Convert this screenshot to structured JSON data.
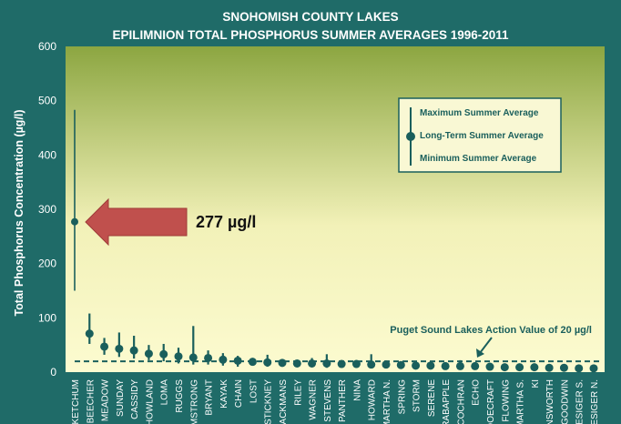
{
  "chart_data": {
    "type": "errorbar",
    "title_line1": "SNOHOMISH COUNTY LAKES",
    "title_line2": "EPILIMNION TOTAL PHOSPHORUS SUMMER AVERAGES 1996-2011",
    "ylabel": "Total  Phosphorus Concentration (µg/l)",
    "xlabel": "",
    "ylim": [
      0,
      600
    ],
    "yticks": [
      0,
      100,
      200,
      300,
      400,
      500,
      600
    ],
    "categories": [
      "KETCHUM",
      "BEECHER",
      "MEADOW",
      "SUNDAY",
      "CASSIDY",
      "HOWLAND",
      "LOMA",
      "RUGGS",
      "ARMSTRONG",
      "BRYANT",
      "KAYAK",
      "CHAIN",
      "LOST",
      "STICKNEY",
      "BLACKMANS",
      "RILEY",
      "WAGNER",
      "STEVENS",
      "PANTHER",
      "NINA",
      "HOWARD",
      "MARTHA N.",
      "SPRING",
      "STORM",
      "SERENE",
      "CRABAPPLE",
      "COCHRAN",
      "ECHO",
      "LOOECRAFT",
      "FLOWING",
      "MARTHA S.",
      "KI",
      "ANSWORTH",
      "GOODWIN",
      "ROESIGER S.",
      "ROESIGER N."
    ],
    "series": [
      {
        "name": "Maximum Summer Average",
        "values": [
          483,
          108,
          63,
          73,
          67,
          50,
          52,
          45,
          85,
          40,
          35,
          30,
          22,
          32,
          20,
          18,
          26,
          33,
          20,
          22,
          33,
          18,
          15,
          16,
          15,
          14,
          22,
          14,
          12,
          11,
          11,
          10,
          10,
          9,
          9,
          8
        ]
      },
      {
        "name": "Long-Term Summer Average",
        "values": [
          277,
          71,
          47,
          43,
          40,
          34,
          33,
          29,
          27,
          26,
          23,
          21,
          19,
          18,
          17,
          16,
          16,
          16,
          15,
          15,
          14,
          14,
          13,
          12,
          12,
          11,
          11,
          11,
          10,
          9,
          9,
          9,
          8,
          8,
          7,
          7
        ]
      },
      {
        "name": "Minimum Summer Average",
        "values": [
          150,
          52,
          32,
          28,
          25,
          22,
          20,
          16,
          14,
          14,
          12,
          10,
          12,
          10,
          11,
          10,
          9,
          8,
          9,
          8,
          7,
          8,
          7,
          6,
          7,
          6,
          5,
          7,
          5,
          5,
          5,
          5,
          5,
          4,
          4,
          4
        ]
      }
    ],
    "action_value": 20,
    "action_label": "Puget Sound Lakes Action Value of 20 µg/l",
    "callout_label": "277 µg/l",
    "legend": {
      "position": "top-right",
      "max_label": "Maximum Summer Average",
      "avg_label": "Long-Term Summer Average",
      "min_label": "Minimum Summer Average"
    },
    "grid": false
  },
  "colors": {
    "background": "#1f6b68",
    "plot_top": "#8ca641",
    "plot_bottom": "#fcfbd0",
    "marker": "#1a5f5c",
    "arrow": "#c0504d"
  }
}
